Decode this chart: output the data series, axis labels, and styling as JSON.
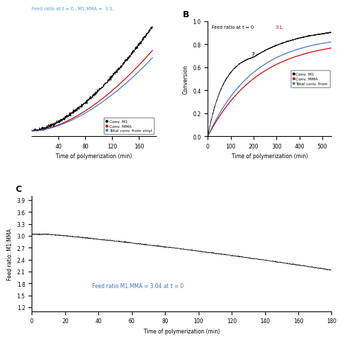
{
  "panel_A": {
    "title_blue": "Feed ratio at t = 0 , M1:MMA =  3:1,",
    "xlabel": "Time of polymerization (min)",
    "xlim": [
      0,
      185
    ],
    "xticks": [
      40,
      80,
      120,
      160
    ],
    "legend": [
      "Conv. M1",
      "Conv. MMA",
      "Total conv. from vinyl"
    ],
    "line_colors": [
      "#000000",
      "#cc0000",
      "#4472c4"
    ]
  },
  "panel_B": {
    "label": "B",
    "title_black": "Feed ratio at t = 0 ",
    "title_red": "3:1,",
    "xlabel": "Time of polymerization (min)",
    "ylabel": "Conversion",
    "xlim": [
      0,
      540
    ],
    "ylim": [
      0,
      1.0
    ],
    "xticks": [
      0,
      100,
      200,
      300,
      400,
      500
    ],
    "yticks": [
      0.0,
      0.2,
      0.4,
      0.6,
      0.8,
      1.0
    ],
    "legend": [
      "Conv. M1",
      "Conv. MMA",
      "Total conv. from"
    ],
    "line_colors": [
      "#000000",
      "#cc0000",
      "#4472c4"
    ]
  },
  "panel_C": {
    "label": "C",
    "xlabel": "Time of polymerization (min)",
    "ylabel": "Feed ratio: M1:MMA",
    "xlim": [
      0,
      180
    ],
    "ylim": [
      1.1,
      4.0
    ],
    "xticks": [
      0,
      20,
      40,
      60,
      80,
      100,
      120,
      140,
      160,
      180
    ],
    "yticks": [
      1.2,
      1.5,
      1.8,
      2.1,
      2.4,
      2.7,
      3.0,
      3.3,
      3.6,
      3.9
    ],
    "annotation": "Feed ratio M1:MMA = 3.04 at t = 0",
    "annotation_color": "#4472c4"
  }
}
